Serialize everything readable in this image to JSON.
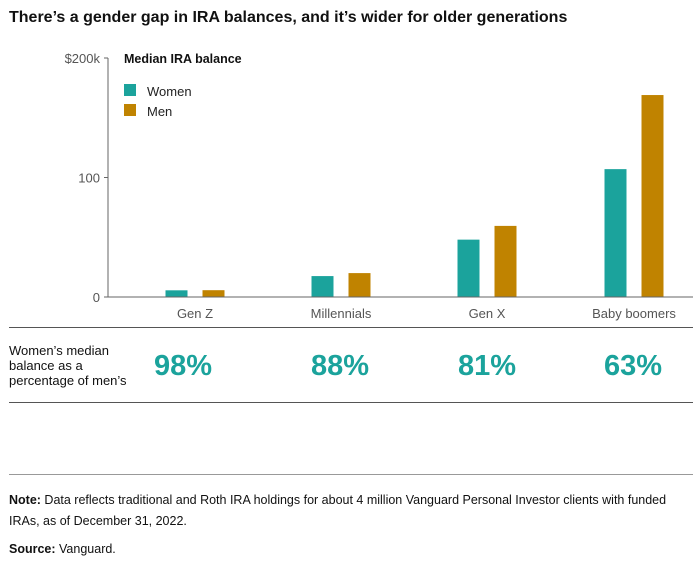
{
  "title": "There’s a gender gap in IRA balances, and it’s wider for older generations",
  "chart_data": {
    "type": "bar",
    "title": "Median IRA balance",
    "categories": [
      "Gen Z",
      "Millennials",
      "Gen X",
      "Baby boomers"
    ],
    "series": [
      {
        "name": "Women",
        "color": "#1ba39c",
        "values": [
          5.6,
          17.5,
          48,
          107
        ]
      },
      {
        "name": "Men",
        "color": "#c08300",
        "values": [
          5.7,
          20,
          59.5,
          169
        ]
      }
    ],
    "yticks": [
      {
        "value": 0,
        "label": "0"
      },
      {
        "value": 100,
        "label": "100"
      },
      {
        "value": 200,
        "label": "$200k"
      }
    ],
    "ylim": [
      0,
      200
    ],
    "legend": "top-left",
    "grid": false
  },
  "ratio": {
    "label": "Women’s median balance as a percentage of men’s",
    "values": [
      "98%",
      "88%",
      "81%",
      "63%"
    ]
  },
  "note": {
    "label": "Note:",
    "text": " Data reflects traditional and Roth IRA holdings for about 4 million Vanguard Personal Investor clients with funded IRAs, as of December 31, 2022."
  },
  "source": {
    "label": "Source:",
    "text": " Vanguard."
  }
}
